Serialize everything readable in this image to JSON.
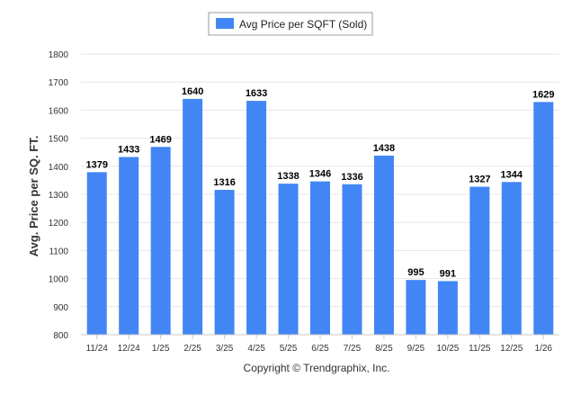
{
  "chart_data": {
    "type": "bar",
    "title": "",
    "xlabel": "",
    "ylabel": "Avg. Price per SQ. FT.",
    "ylim": [
      800,
      1800
    ],
    "yticks": [
      800,
      900,
      1000,
      1100,
      1200,
      1300,
      1400,
      1500,
      1600,
      1700,
      1800
    ],
    "grid": true,
    "legend": "top-center",
    "categories": [
      "11/24",
      "12/24",
      "1/25",
      "2/25",
      "3/25",
      "4/25",
      "5/25",
      "6/25",
      "7/25",
      "8/25",
      "9/25",
      "10/25",
      "11/25",
      "12/25",
      "1/26"
    ],
    "series": [
      {
        "name": "Avg Price per SQFT (Sold)",
        "color": "#4286f5",
        "values": [
          1379,
          1433,
          1469,
          1640,
          1316,
          1633,
          1338,
          1346,
          1336,
          1438,
          995,
          991,
          1327,
          1344,
          1629
        ]
      }
    ],
    "footer": "Copyright © Trendgraphix, Inc."
  }
}
